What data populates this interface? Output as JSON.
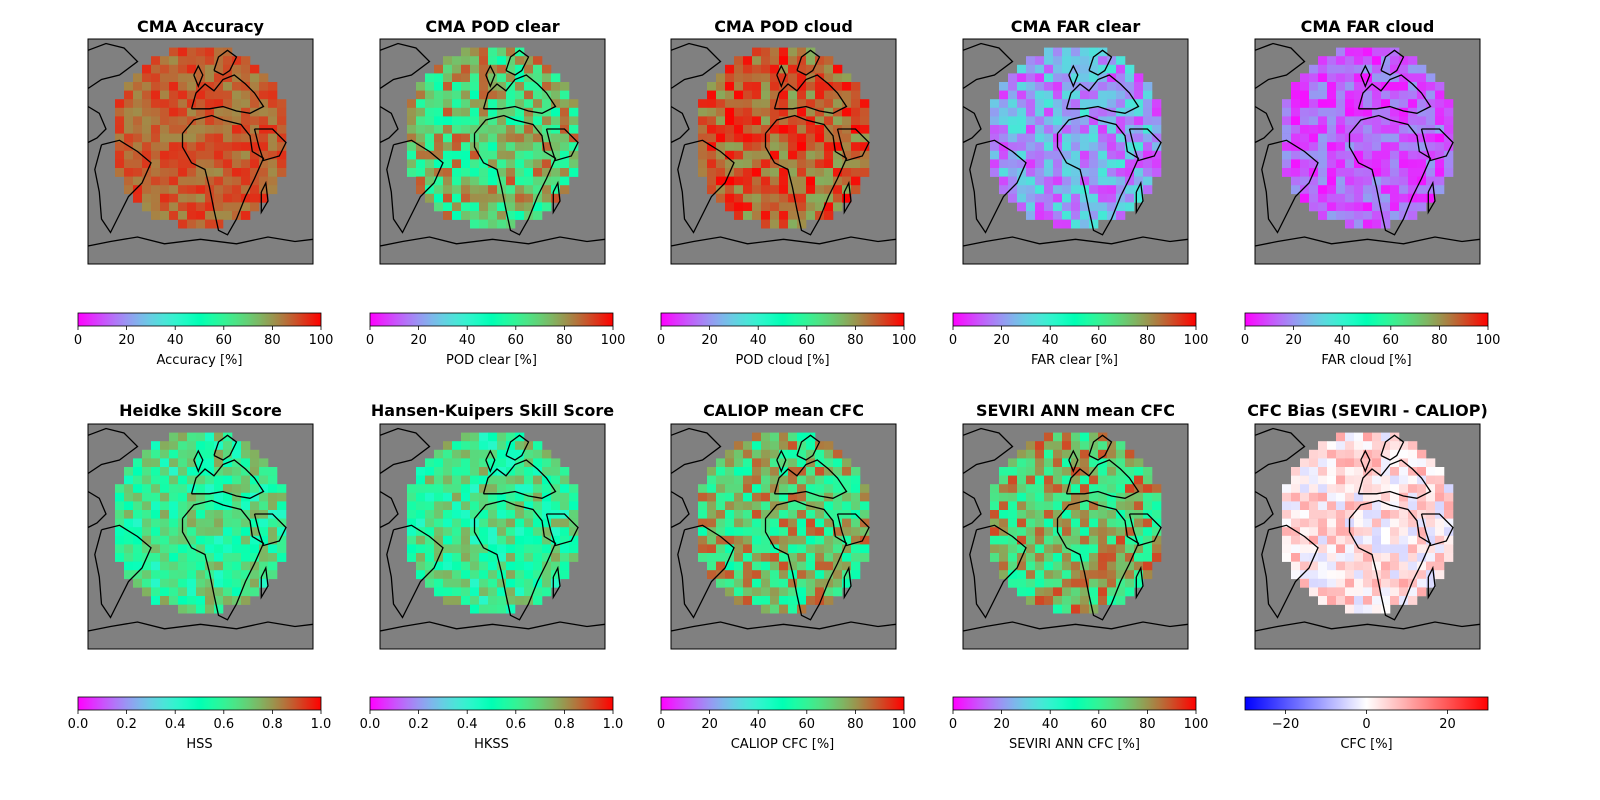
{
  "chart_data": [
    {
      "type": "heatmap",
      "title": "CMA Accuracy",
      "colorbar_label": "Accuracy [%]",
      "colormap": "rainbow",
      "range": [
        0,
        100
      ],
      "ticks": [
        "0",
        "20",
        "40",
        "60",
        "80",
        "100"
      ],
      "tick_values": [
        0,
        20,
        40,
        60,
        80,
        100
      ],
      "typical_value": 88,
      "variability": 7
    },
    {
      "type": "heatmap",
      "title": "CMA POD clear",
      "colorbar_label": "POD clear [%]",
      "colormap": "rainbow",
      "range": [
        0,
        100
      ],
      "ticks": [
        "0",
        "20",
        "40",
        "60",
        "80",
        "100"
      ],
      "tick_values": [
        0,
        20,
        40,
        60,
        80,
        100
      ],
      "typical_value": 70,
      "variability": 20
    },
    {
      "type": "heatmap",
      "title": "CMA POD cloud",
      "colorbar_label": "POD cloud [%]",
      "colormap": "rainbow",
      "range": [
        0,
        100
      ],
      "ticks": [
        "0",
        "20",
        "40",
        "60",
        "80",
        "100"
      ],
      "tick_values": [
        0,
        20,
        40,
        60,
        80,
        100
      ],
      "typical_value": 88,
      "variability": 12
    },
    {
      "type": "heatmap",
      "title": "CMA FAR clear",
      "colorbar_label": "FAR clear [%]",
      "colormap": "rainbow",
      "range": [
        0,
        100
      ],
      "ticks": [
        "0",
        "20",
        "40",
        "60",
        "80",
        "100"
      ],
      "tick_values": [
        0,
        20,
        40,
        60,
        80,
        100
      ],
      "typical_value": 22,
      "variability": 15
    },
    {
      "type": "heatmap",
      "title": "CMA FAR cloud",
      "colorbar_label": "FAR cloud [%]",
      "colormap": "rainbow",
      "range": [
        0,
        100
      ],
      "ticks": [
        "0",
        "20",
        "40",
        "60",
        "80",
        "100"
      ],
      "tick_values": [
        0,
        20,
        40,
        60,
        80,
        100
      ],
      "typical_value": 12,
      "variability": 10
    },
    {
      "type": "heatmap",
      "title": "Heidke Skill Score",
      "colorbar_label": "HSS",
      "colormap": "rainbow",
      "range": [
        0,
        1
      ],
      "ticks": [
        "0.0",
        "0.2",
        "0.4",
        "0.6",
        "0.8",
        "1.0"
      ],
      "tick_values": [
        0,
        0.2,
        0.4,
        0.6,
        0.8,
        1.0
      ],
      "typical_value": 0.6,
      "variability": 0.18
    },
    {
      "type": "heatmap",
      "title": "Hansen-Kuipers Skill Score",
      "colorbar_label": "HKSS",
      "colormap": "rainbow",
      "range": [
        0,
        1
      ],
      "ticks": [
        "0.0",
        "0.2",
        "0.4",
        "0.6",
        "0.8",
        "1.0"
      ],
      "tick_values": [
        0,
        0.2,
        0.4,
        0.6,
        0.8,
        1.0
      ],
      "typical_value": 0.6,
      "variability": 0.18
    },
    {
      "type": "heatmap",
      "title": "CALIOP mean CFC",
      "colorbar_label": "CALIOP CFC [%]",
      "colormap": "rainbow",
      "range": [
        0,
        100
      ],
      "ticks": [
        "0",
        "20",
        "40",
        "60",
        "80",
        "100"
      ],
      "tick_values": [
        0,
        20,
        40,
        60,
        80,
        100
      ],
      "typical_value": 70,
      "variability": 20
    },
    {
      "type": "heatmap",
      "title": "SEVIRI ANN mean CFC",
      "colorbar_label": "SEVIRI ANN CFC [%]",
      "colormap": "rainbow",
      "range": [
        0,
        100
      ],
      "ticks": [
        "0",
        "20",
        "40",
        "60",
        "80",
        "100"
      ],
      "tick_values": [
        0,
        20,
        40,
        60,
        80,
        100
      ],
      "typical_value": 72,
      "variability": 20
    },
    {
      "type": "heatmap",
      "title": "CFC Bias (SEVIRI - CALIOP)",
      "colorbar_label": "CFC [%]",
      "colormap": "bwr",
      "range": [
        -30,
        30
      ],
      "ticks": [
        "−20",
        "0",
        "20"
      ],
      "tick_values": [
        -20,
        0,
        20
      ],
      "typical_value": 3,
      "variability": 8
    }
  ],
  "colors": {
    "map_background": "#808080",
    "frame": "#000000",
    "coastline": "#000000"
  }
}
